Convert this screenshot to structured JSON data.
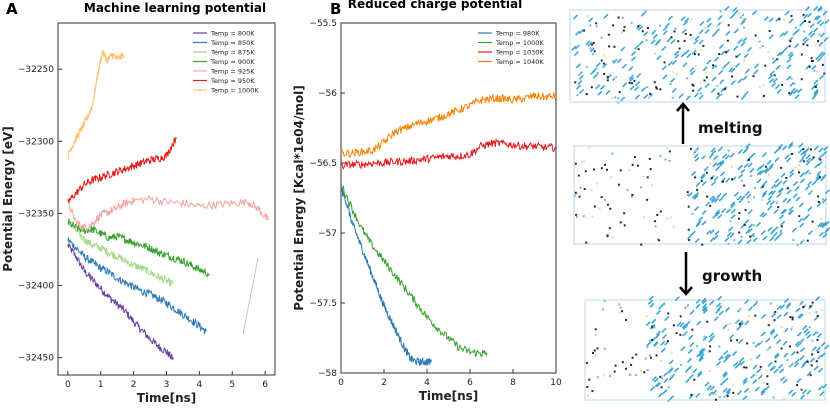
{
  "chart_data": [
    {
      "panel_label": "A",
      "type": "line",
      "title": "Machine learning potential",
      "xlabel": "Time[ns]",
      "ylabel": "Potential Energy [eV]",
      "xlim": [
        -0.3,
        6.3
      ],
      "ylim": [
        -32462,
        -32218
      ],
      "xticks": [
        0,
        1,
        2,
        3,
        4,
        5,
        6
      ],
      "yticks": [
        -32250,
        -32300,
        -32350,
        -32400,
        -32450
      ],
      "legend_position": "top-right",
      "series": [
        {
          "name": "Temp = 800K",
          "color": "#6a3d9a",
          "x": [
            0,
            0.25,
            0.5,
            0.75,
            1.0,
            1.25,
            1.5,
            1.75,
            2.0,
            2.25,
            2.5,
            2.75,
            3.0,
            3.2
          ],
          "y": [
            -32372,
            -32380,
            -32390,
            -32396,
            -32402,
            -32408,
            -32413,
            -32418,
            -32425,
            -32431,
            -32437,
            -32442,
            -32446,
            -32451
          ]
        },
        {
          "name": "Temp = 850K",
          "color": "#2c7bb6",
          "x": [
            0,
            0.25,
            0.5,
            0.75,
            1.0,
            1.25,
            1.5,
            1.75,
            2.0,
            2.25,
            2.5,
            2.75,
            3.0,
            3.25,
            3.5,
            3.75,
            4.0,
            4.2
          ],
          "y": [
            -32368,
            -32374,
            -32380,
            -32384,
            -32388,
            -32391,
            -32395,
            -32398,
            -32401,
            -32404,
            -32406,
            -32409,
            -32412,
            -32416,
            -32420,
            -32424,
            -32428,
            -32432
          ]
        },
        {
          "name": "Temp = 875K",
          "color": "#a6d98c",
          "x": [
            0,
            0.25,
            0.5,
            0.75,
            1.0,
            1.25,
            1.5,
            1.75,
            2.0,
            2.25,
            2.5,
            2.75,
            3.0,
            3.2
          ],
          "y": [
            -32355,
            -32362,
            -32368,
            -32372,
            -32374,
            -32377,
            -32380,
            -32383,
            -32386,
            -32388,
            -32391,
            -32394,
            -32397,
            -32399
          ]
        },
        {
          "name": "Temp = 900K",
          "color": "#33a02c",
          "x": [
            0,
            0.25,
            0.5,
            0.75,
            1.0,
            1.25,
            1.5,
            1.75,
            2.0,
            2.25,
            2.5,
            2.75,
            3.0,
            3.25,
            3.5,
            3.75,
            4.0,
            4.3
          ],
          "y": [
            -32356,
            -32360,
            -32362,
            -32361,
            -32364,
            -32367,
            -32366,
            -32368,
            -32370,
            -32372,
            -32374,
            -32377,
            -32379,
            -32381,
            -32383,
            -32386,
            -32389,
            -32392
          ]
        },
        {
          "name": "Temp = 925K",
          "color": "#f4a3a3",
          "x": [
            0,
            0.25,
            0.5,
            0.75,
            1.0,
            1.25,
            1.5,
            1.75,
            2.0,
            2.5,
            3.0,
            3.5,
            4.0,
            4.5,
            5.0,
            5.5,
            5.8,
            6.1
          ],
          "y": [
            -32343,
            -32356,
            -32360,
            -32357,
            -32351,
            -32349,
            -32346,
            -32343,
            -32341,
            -32340,
            -32342,
            -32343,
            -32345,
            -32344,
            -32343,
            -32342,
            -32347,
            -32355
          ]
        },
        {
          "name": "Temp = 950K",
          "color": "#e31a1c",
          "x": [
            0,
            0.25,
            0.5,
            0.75,
            1.0,
            1.25,
            1.5,
            1.75,
            2.0,
            2.25,
            2.5,
            2.75,
            3.0,
            3.3
          ],
          "y": [
            -32342,
            -32336,
            -32330,
            -32327,
            -32325,
            -32323,
            -32321,
            -32319,
            -32317,
            -32315,
            -32313,
            -32312,
            -32310,
            -32297
          ]
        },
        {
          "name": "Temp = 1000K",
          "color": "#fdbf6f",
          "x": [
            0,
            0.15,
            0.3,
            0.45,
            0.6,
            0.75,
            0.9,
            1.05,
            1.2,
            1.35,
            1.5,
            1.7
          ],
          "y": [
            -32310,
            -32302,
            -32296,
            -32290,
            -32283,
            -32275,
            -32255,
            -32238,
            -32244,
            -32240,
            -32243,
            -32240
          ]
        }
      ]
    },
    {
      "panel_label": "B",
      "type": "line",
      "title": "Reduced charge potential",
      "xlabel": "Time[ns]",
      "ylabel": "Potential Energy [Kcal*1e04/mol]",
      "xlim": [
        0,
        10
      ],
      "ylim": [
        -58.0,
        -55.5
      ],
      "xticks": [
        0,
        2,
        4,
        6,
        8,
        10
      ],
      "yticks": [
        -55.5,
        -56.0,
        -56.5,
        -57.0,
        -57.5,
        -58.0
      ],
      "legend_position": "top-right",
      "series": [
        {
          "name": "Temp = 980K",
          "color": "#2c7bb6",
          "x": [
            0,
            0.25,
            0.5,
            0.75,
            1.0,
            1.25,
            1.5,
            1.75,
            2.0,
            2.25,
            2.5,
            2.75,
            3.0,
            3.25,
            3.5,
            3.75,
            4.0,
            4.2
          ],
          "y": [
            -56.68,
            -56.78,
            -56.92,
            -57.02,
            -57.12,
            -57.22,
            -57.32,
            -57.42,
            -57.52,
            -57.6,
            -57.68,
            -57.76,
            -57.84,
            -57.9,
            -57.92,
            -57.92,
            -57.92,
            -57.92
          ]
        },
        {
          "name": "Temp = 1000K",
          "color": "#33a02c",
          "x": [
            0,
            0.5,
            1.0,
            1.5,
            2.0,
            2.5,
            3.0,
            3.5,
            4.0,
            4.5,
            5.0,
            5.5,
            6.0,
            6.5,
            6.8
          ],
          "y": [
            -56.65,
            -56.82,
            -56.98,
            -57.1,
            -57.2,
            -57.3,
            -57.4,
            -57.5,
            -57.6,
            -57.68,
            -57.75,
            -57.82,
            -57.85,
            -57.86,
            -57.86
          ]
        },
        {
          "name": "Temp = 1030K",
          "color": "#e31a1c",
          "x": [
            0,
            0.5,
            1.0,
            1.5,
            2.0,
            2.5,
            3.0,
            3.5,
            4.0,
            4.5,
            5.0,
            5.5,
            6.0,
            6.5,
            7.0,
            7.5,
            8.0,
            8.5,
            9.0,
            9.5,
            10.0
          ],
          "y": [
            -56.52,
            -56.51,
            -56.51,
            -56.5,
            -56.5,
            -56.49,
            -56.49,
            -56.48,
            -56.47,
            -56.46,
            -56.45,
            -56.45,
            -56.44,
            -56.38,
            -56.36,
            -56.36,
            -56.37,
            -56.38,
            -56.38,
            -56.39,
            -56.39
          ]
        },
        {
          "name": "Temp = 1040K",
          "color": "#ff7f00",
          "x": [
            0,
            0.5,
            1.0,
            1.5,
            2.0,
            2.5,
            3.0,
            3.5,
            4.0,
            4.5,
            5.0,
            5.5,
            6.0,
            6.5,
            7.0,
            7.5,
            8.0,
            8.5,
            9.0,
            9.5,
            10.0
          ],
          "y": [
            -56.43,
            -56.43,
            -56.42,
            -56.41,
            -56.35,
            -56.28,
            -56.25,
            -56.22,
            -56.2,
            -56.18,
            -56.15,
            -56.12,
            -56.09,
            -56.05,
            -56.04,
            -56.04,
            -56.05,
            -56.04,
            -56.02,
            -56.03,
            -56.02
          ]
        }
      ]
    }
  ],
  "snapshots": {
    "labels": [
      "melting",
      "growth"
    ],
    "colors": {
      "crystal": "#3aa6d8",
      "liquid_dark": "#1f2a2f",
      "liquid_light": "#e8d9a8",
      "accent": "#6db6e0"
    }
  }
}
